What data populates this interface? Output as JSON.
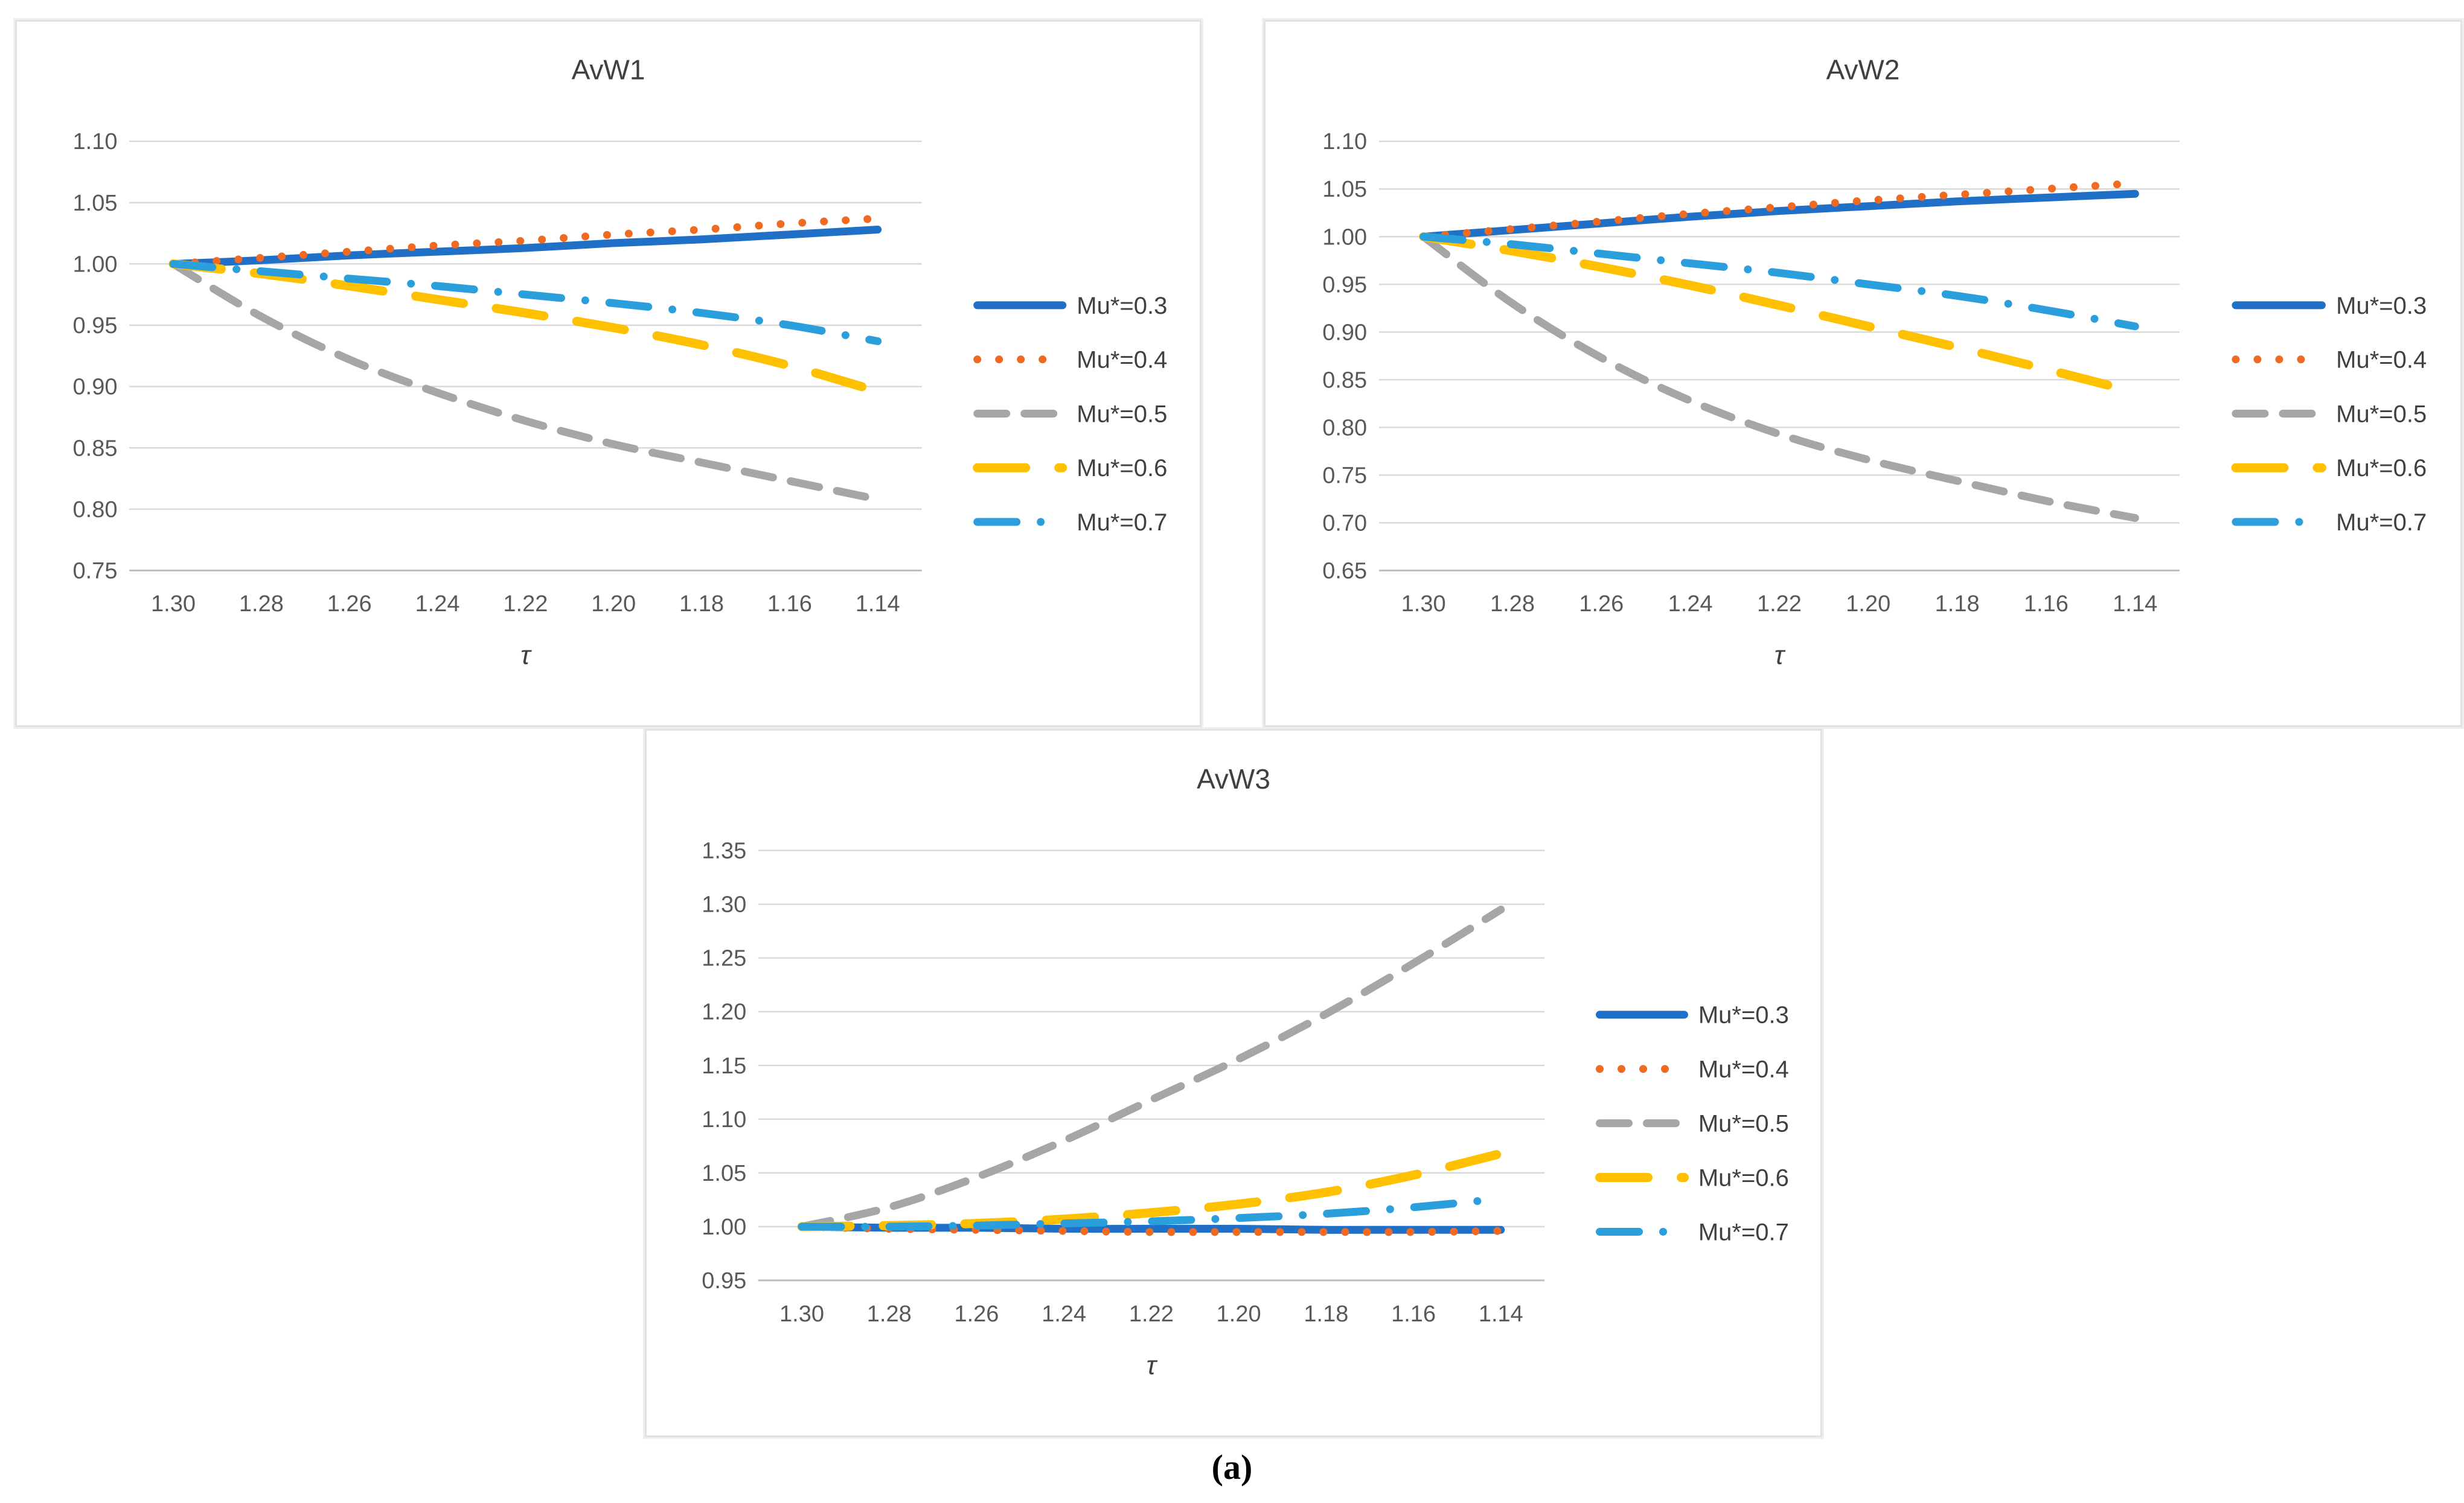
{
  "figure": {
    "caption": "(a)",
    "colors": {
      "accent_blue": "#2170C8",
      "accent_orange": "#F06A21",
      "accent_gray": "#A6A6A6",
      "accent_yellow": "#FFC000",
      "accent_lightblue": "#2B9FDC",
      "gridline": "#D9D9D9",
      "axis_line": "#BFBFBF",
      "axis_text": "#595959",
      "title_text": "#404040"
    }
  },
  "chart_data": [
    {
      "type": "line",
      "title": "AvW1",
      "xlabel": "τ",
      "x_axis_reversed": true,
      "grid": true,
      "legend_position": "right",
      "x_tick_labels": [
        "1.30",
        "1.28",
        "1.26",
        "1.24",
        "1.22",
        "1.20",
        "1.18",
        "1.16",
        "1.14"
      ],
      "y_tick_labels": [
        "1.10",
        "1.05",
        "1.00",
        "0.95",
        "0.90",
        "0.85",
        "0.80",
        "0.75"
      ],
      "ylim": [
        0.75,
        1.1
      ],
      "series": [
        {
          "name": "Mu*=0.3",
          "color": "#2170C8",
          "dash": "solid",
          "values": [
            1.0,
            1.003,
            1.007,
            1.01,
            1.013,
            1.017,
            1.02,
            1.024,
            1.028
          ]
        },
        {
          "name": "Mu*=0.4",
          "color": "#F06A21",
          "dash": "dot",
          "values": [
            1.0,
            1.005,
            1.01,
            1.015,
            1.019,
            1.024,
            1.028,
            1.033,
            1.037
          ]
        },
        {
          "name": "Mu*=0.5",
          "color": "#A6A6A6",
          "dash": "dash",
          "values": [
            1.0,
            0.957,
            0.922,
            0.895,
            0.872,
            0.853,
            0.838,
            0.823,
            0.808
          ]
        },
        {
          "name": "Mu*=0.6",
          "color": "#FFC000",
          "dash": "longdash",
          "values": [
            1.0,
            0.992,
            0.982,
            0.971,
            0.96,
            0.948,
            0.934,
            0.917,
            0.896
          ]
        },
        {
          "name": "Mu*=0.7",
          "color": "#2B9FDC",
          "dash": "dashdot",
          "values": [
            1.0,
            0.994,
            0.988,
            0.982,
            0.975,
            0.968,
            0.96,
            0.95,
            0.937
          ]
        }
      ]
    },
    {
      "type": "line",
      "title": "AvW2",
      "xlabel": "τ",
      "x_axis_reversed": true,
      "grid": true,
      "legend_position": "right",
      "x_tick_labels": [
        "1.30",
        "1.28",
        "1.26",
        "1.24",
        "1.22",
        "1.20",
        "1.18",
        "1.16",
        "1.14"
      ],
      "y_tick_labels": [
        "1.10",
        "1.05",
        "1.00",
        "0.95",
        "0.90",
        "0.85",
        "0.80",
        "0.75",
        "0.70",
        "0.65"
      ],
      "ylim": [
        0.65,
        1.1
      ],
      "series": [
        {
          "name": "Mu*=0.3",
          "color": "#2170C8",
          "dash": "solid",
          "values": [
            1.0,
            1.007,
            1.014,
            1.021,
            1.027,
            1.032,
            1.037,
            1.041,
            1.045
          ]
        },
        {
          "name": "Mu*=0.4",
          "color": "#F06A21",
          "dash": "dot",
          "values": [
            1.0,
            1.008,
            1.016,
            1.024,
            1.031,
            1.038,
            1.044,
            1.05,
            1.056
          ]
        },
        {
          "name": "Mu*=0.5",
          "color": "#A6A6A6",
          "dash": "dash",
          "values": [
            1.0,
            0.93,
            0.873,
            0.828,
            0.793,
            0.766,
            0.744,
            0.723,
            0.705
          ]
        },
        {
          "name": "Mu*=0.6",
          "color": "#FFC000",
          "dash": "longdash",
          "values": [
            1.0,
            0.985,
            0.968,
            0.949,
            0.928,
            0.906,
            0.884,
            0.861,
            0.837
          ]
        },
        {
          "name": "Mu*=0.7",
          "color": "#2B9FDC",
          "dash": "dashdot",
          "values": [
            1.0,
            0.992,
            0.982,
            0.972,
            0.962,
            0.95,
            0.938,
            0.923,
            0.906
          ]
        }
      ]
    },
    {
      "type": "line",
      "title": "AvW3",
      "xlabel": "τ",
      "x_axis_reversed": true,
      "grid": true,
      "legend_position": "right",
      "x_tick_labels": [
        "1.30",
        "1.28",
        "1.26",
        "1.24",
        "1.22",
        "1.20",
        "1.18",
        "1.16",
        "1.14"
      ],
      "y_tick_labels": [
        "1.35",
        "1.30",
        "1.25",
        "1.20",
        "1.15",
        "1.10",
        "1.05",
        "1.00",
        "0.95"
      ],
      "ylim": [
        0.95,
        1.35
      ],
      "series": [
        {
          "name": "Mu*=0.3",
          "color": "#2170C8",
          "dash": "solid",
          "values": [
            1.0,
            0.999,
            0.999,
            0.998,
            0.998,
            0.998,
            0.997,
            0.997,
            0.997
          ]
        },
        {
          "name": "Mu*=0.4",
          "color": "#F06A21",
          "dash": "dot",
          "values": [
            1.0,
            0.998,
            0.997,
            0.996,
            0.995,
            0.995,
            0.995,
            0.995,
            0.996
          ]
        },
        {
          "name": "Mu*=0.5",
          "color": "#A6A6A6",
          "dash": "dash",
          "values": [
            1.0,
            1.018,
            1.046,
            1.08,
            1.118,
            1.156,
            1.198,
            1.245,
            1.295
          ]
        },
        {
          "name": "Mu*=0.6",
          "color": "#FFC000",
          "dash": "longdash",
          "values": [
            1.0,
            1.001,
            1.003,
            1.007,
            1.013,
            1.021,
            1.032,
            1.048,
            1.068
          ]
        },
        {
          "name": "Mu*=0.7",
          "color": "#2B9FDC",
          "dash": "dashdot",
          "values": [
            1.0,
            1.0,
            1.001,
            1.003,
            1.005,
            1.008,
            1.012,
            1.018,
            1.026
          ]
        }
      ]
    }
  ]
}
